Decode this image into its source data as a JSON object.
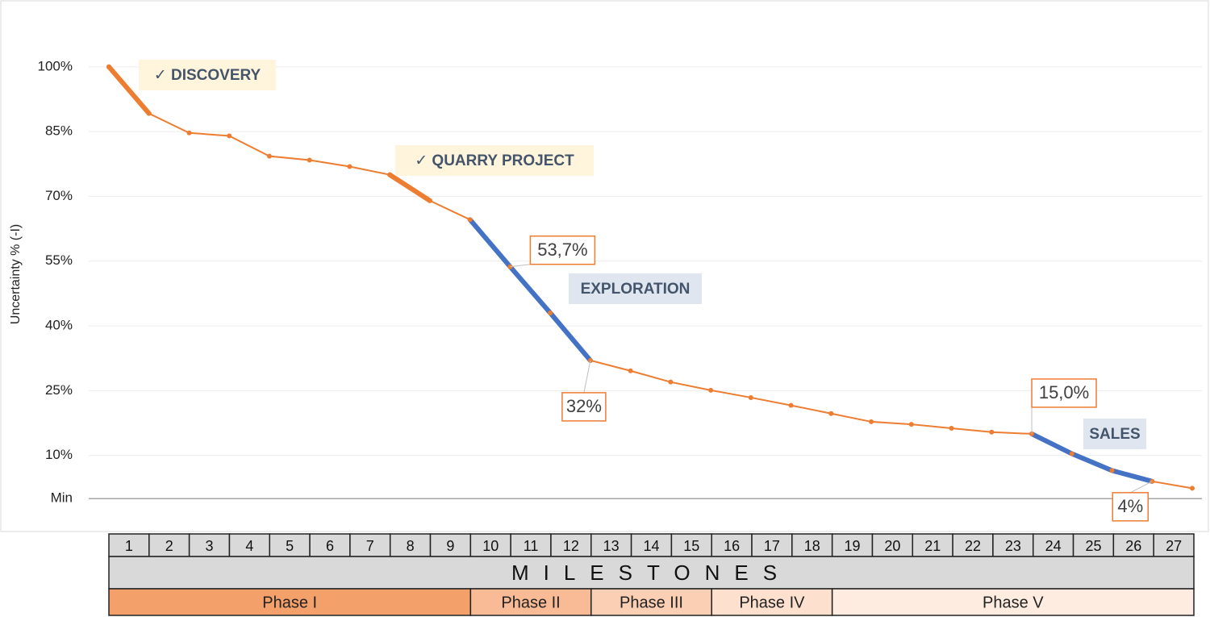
{
  "chart_data": {
    "type": "line",
    "y_label": "Uncertainty % (-I)",
    "x": [
      0,
      1,
      2,
      3,
      4,
      5,
      6,
      7,
      8,
      9,
      10,
      11,
      12,
      13,
      14,
      15,
      16,
      17,
      18,
      19,
      20,
      21,
      22,
      23,
      24,
      25,
      26,
      27
    ],
    "xlim": [
      0,
      27
    ],
    "ylim": [
      -5,
      108
    ],
    "yticks": [
      {
        "value": 0,
        "label": "Min"
      },
      {
        "value": 10,
        "label": "10%"
      },
      {
        "value": 25,
        "label": "25%"
      },
      {
        "value": 40,
        "label": "40%"
      },
      {
        "value": 55,
        "label": "55%"
      },
      {
        "value": 70,
        "label": "70%"
      },
      {
        "value": 85,
        "label": "85%"
      },
      {
        "value": 100,
        "label": "100%"
      }
    ],
    "grid": true,
    "series": [
      {
        "name": "Uncertainty",
        "color": "#ed7d31",
        "values": [
          100,
          89.2,
          84.7,
          84,
          79.3,
          78.4,
          76.9,
          75,
          69,
          64.6,
          53.7,
          43,
          32,
          29.6,
          27,
          25.1,
          23.4,
          21.6,
          19.7,
          17.8,
          17.2,
          16.3,
          15.4,
          15.0,
          10.4,
          6.5,
          4,
          2.4
        ],
        "value_labels": [
          null,
          null,
          null,
          null,
          null,
          null,
          null,
          null,
          null,
          null,
          "53,7%",
          null,
          "32%",
          null,
          null,
          null,
          null,
          null,
          null,
          null,
          null,
          null,
          null,
          "15,0%",
          null,
          null,
          "4%",
          null
        ]
      }
    ],
    "segments": [
      {
        "label": "✓ DISCOVERY",
        "color": "#ed7d31",
        "from": 0,
        "to": 1
      },
      {
        "label": "✓ QUARRY PROJECT",
        "color": "#ed7d31",
        "from": 7,
        "to": 8
      },
      {
        "label": "EXPLORATION",
        "color": "#4472c4",
        "from": 9,
        "to": 12
      },
      {
        "label": "SALES",
        "color": "#4472c4",
        "from": 23,
        "to": 26
      }
    ],
    "milestones": {
      "title": "MILESTONES",
      "categories": [
        "1",
        "2",
        "3",
        "4",
        "5",
        "6",
        "7",
        "8",
        "9",
        "10",
        "11",
        "12",
        "13",
        "14",
        "15",
        "16",
        "17",
        "18",
        "19",
        "20",
        "21",
        "22",
        "23",
        "24",
        "25",
        "26",
        "27"
      ],
      "phases": [
        {
          "label": "Phase I",
          "from": 1,
          "to": 9,
          "color": "#f4a06b"
        },
        {
          "label": "Phase II",
          "from": 10,
          "to": 12,
          "color": "#f8bb95"
        },
        {
          "label": "Phase III",
          "from": 13,
          "to": 15,
          "color": "#fbcfb3"
        },
        {
          "label": "Phase IV",
          "from": 16,
          "to": 18,
          "color": "#fde0cd"
        },
        {
          "label": "Phase V",
          "from": 19,
          "to": 27,
          "color": "#feece0"
        }
      ]
    }
  }
}
